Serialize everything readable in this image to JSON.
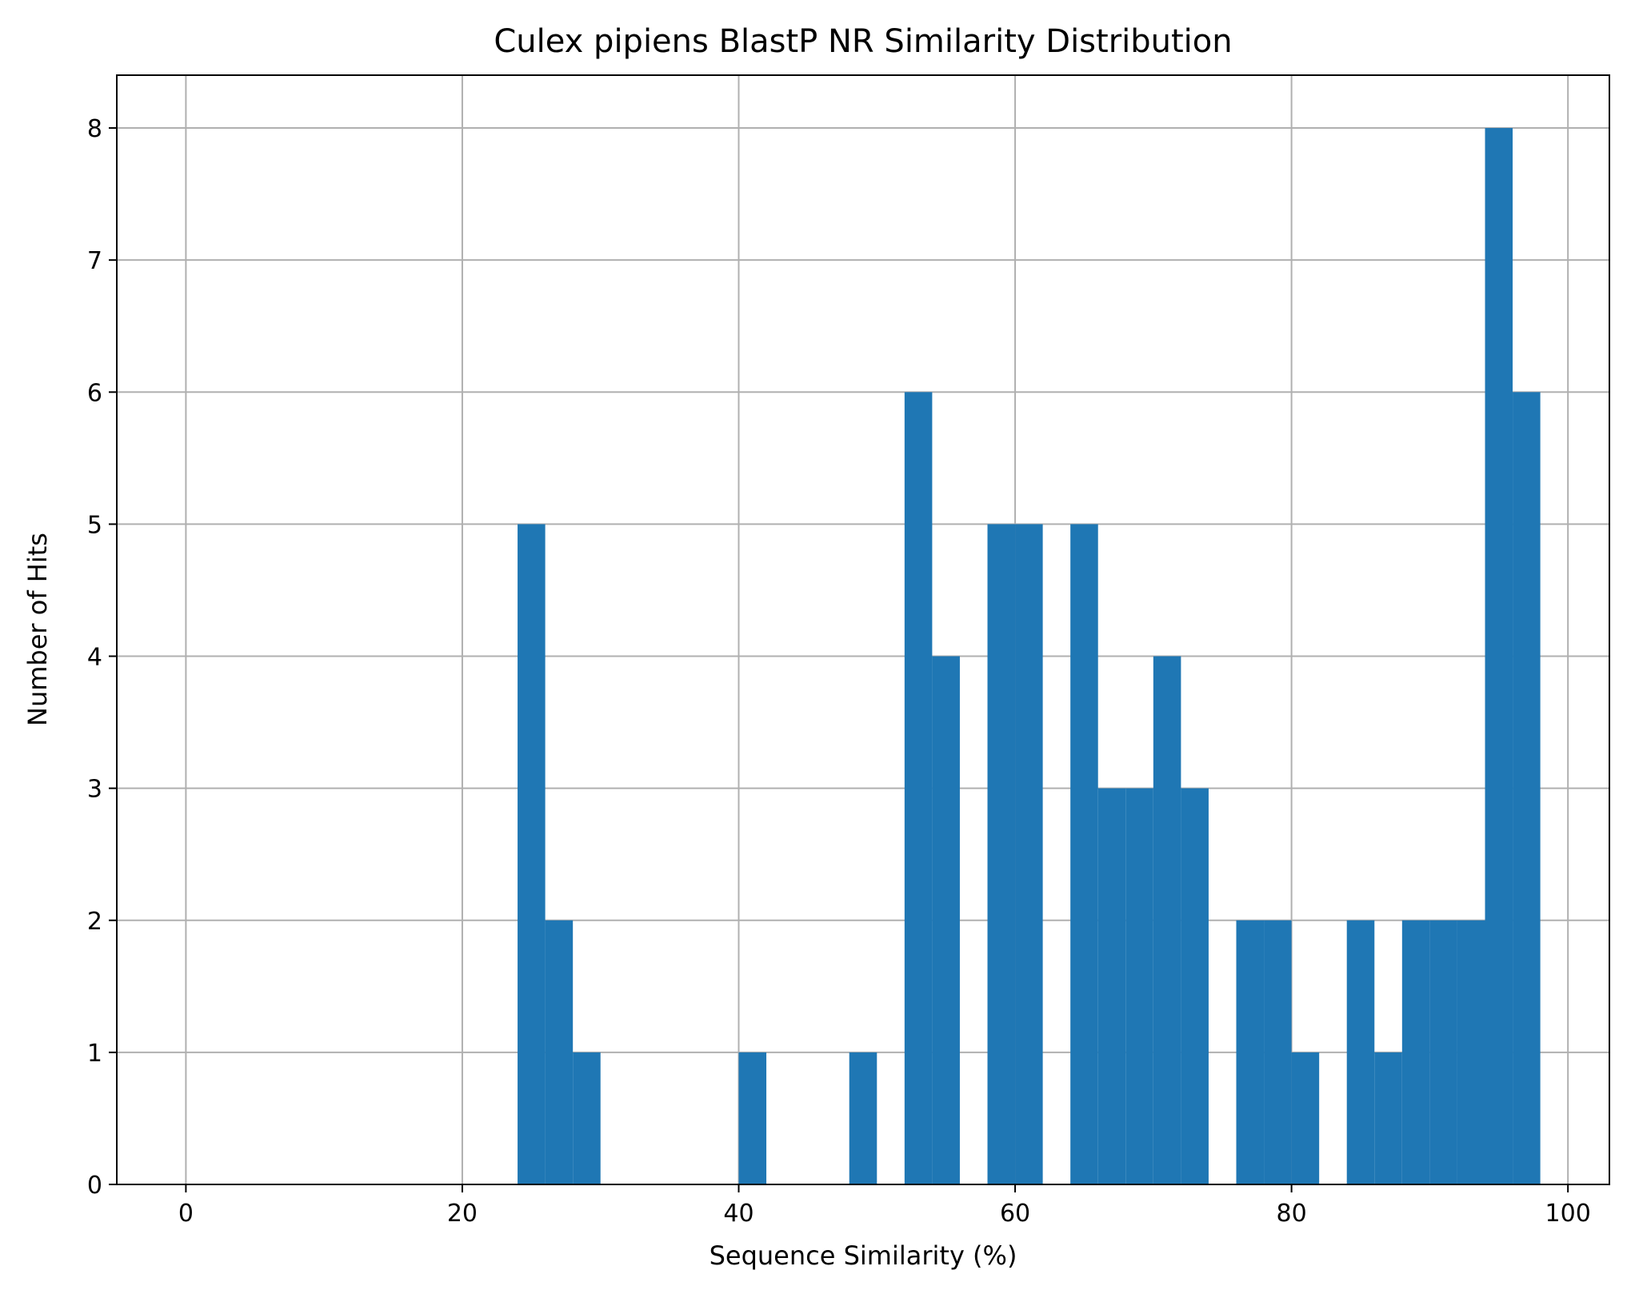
{
  "chart_data": {
    "type": "bar",
    "title": "Culex pipiens BlastP NR Similarity Distribution",
    "xlabel": "Sequence Similarity (%)",
    "ylabel": "Number of Hits",
    "xlim": [
      -5,
      103
    ],
    "ylim": [
      0,
      8.4
    ],
    "xticks": [
      0,
      20,
      40,
      60,
      80,
      100
    ],
    "yticks": [
      0,
      1,
      2,
      3,
      4,
      5,
      6,
      7,
      8
    ],
    "grid": true,
    "bin_width": 2,
    "bins": [
      {
        "start": 24,
        "count": 5
      },
      {
        "start": 26,
        "count": 2
      },
      {
        "start": 28,
        "count": 1
      },
      {
        "start": 40,
        "count": 1
      },
      {
        "start": 48,
        "count": 1
      },
      {
        "start": 52,
        "count": 6
      },
      {
        "start": 54,
        "count": 4
      },
      {
        "start": 58,
        "count": 5
      },
      {
        "start": 60,
        "count": 5
      },
      {
        "start": 64,
        "count": 5
      },
      {
        "start": 66,
        "count": 3
      },
      {
        "start": 68,
        "count": 3
      },
      {
        "start": 70,
        "count": 4
      },
      {
        "start": 72,
        "count": 3
      },
      {
        "start": 76,
        "count": 2
      },
      {
        "start": 78,
        "count": 2
      },
      {
        "start": 80,
        "count": 1
      },
      {
        "start": 84,
        "count": 2
      },
      {
        "start": 86,
        "count": 1
      },
      {
        "start": 88,
        "count": 2
      },
      {
        "start": 90,
        "count": 2
      },
      {
        "start": 92,
        "count": 2
      },
      {
        "start": 94,
        "count": 8
      },
      {
        "start": 96,
        "count": 6
      }
    ],
    "bar_color": "#1f77b4"
  }
}
